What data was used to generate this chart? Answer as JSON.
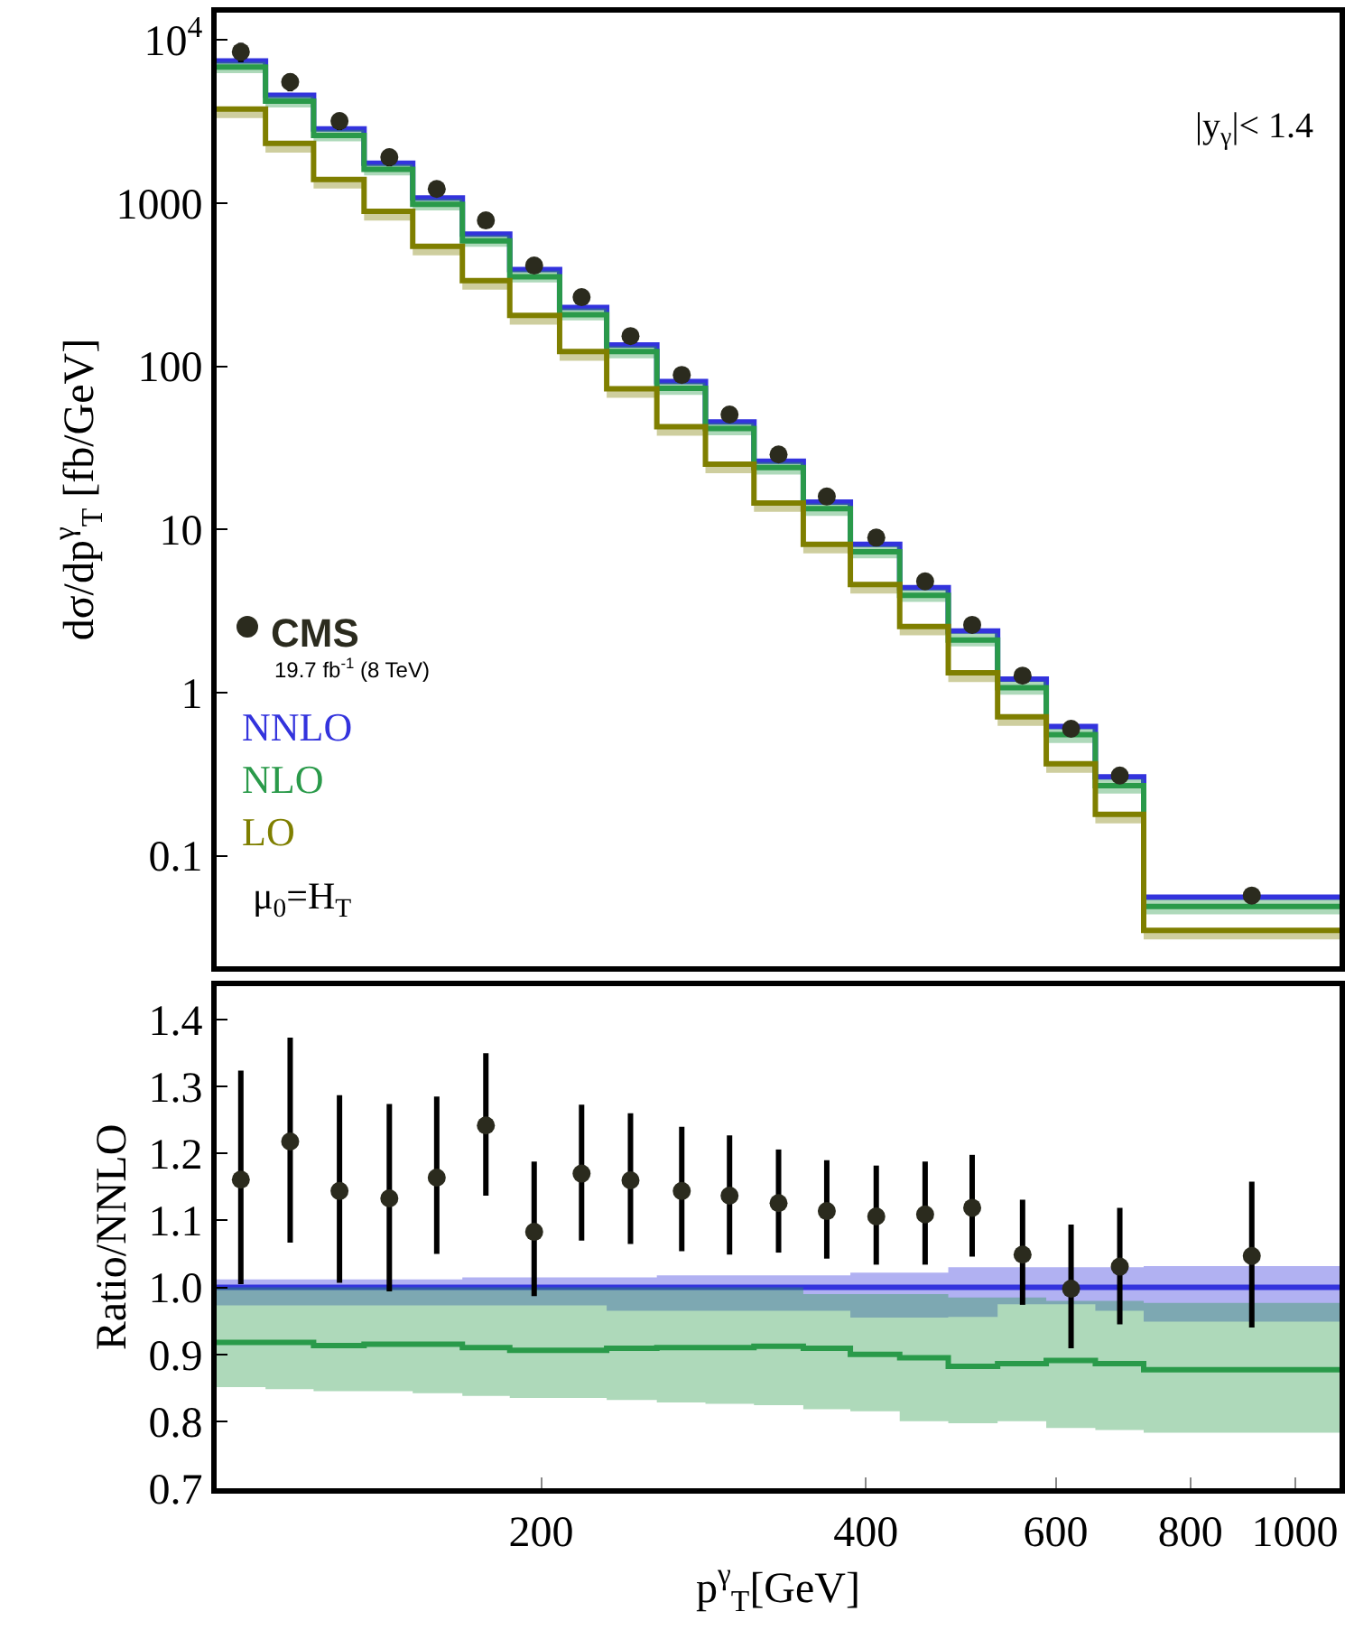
{
  "chart_data": [
    {
      "type": "step",
      "ylabel": "dσ/dp$^{γ}$$_{T}$ [fb/GeV]",
      "log": "xy",
      "xlim": [
        100,
        1100
      ],
      "ylim": [
        0.021,
        14700
      ],
      "yticks": [
        {
          "value": 10000,
          "label": "10$^{4}$"
        },
        1000,
        100,
        10,
        1,
        0.1
      ],
      "tick_labels": "y",
      "legend": "bottom left",
      "line_style": "solid",
      "annotations": [
        "|y$_{γ}$|< 1.4",
        "19.7 fb$^{-1}$ (8 TeV)",
        "μ$_{0}$=H$_{T}$"
      ],
      "series": [
        {
          "name": "CMS",
          "type": "scatter",
          "marker": "circle",
          "color": "#2b2b1e",
          "x": [
            105.3,
            117,
            130,
            144.6,
            160,
            177.7,
            197,
            218,
            242,
            270,
            299,
            332,
            368,
            409,
            454,
            502,
            559,
            620,
            688,
            912
          ],
          "values": [
            8450,
            5525,
            3180,
            1910,
            1220,
            783,
            414,
            265,
            153,
            88.5,
            50.6,
            28.8,
            15.9,
            8.9,
            4.8,
            2.6,
            1.27,
            0.6,
            0.31,
            0.057
          ],
          "errors": [
            [
              7300,
              9600
            ],
            [
              4840,
              6230
            ],
            [
              2800,
              3580
            ],
            [
              1680,
              2150
            ],
            [
              1100,
              1350
            ],
            [
              717,
              851
            ],
            [
              377,
              454
            ],
            [
              242,
              288
            ],
            [
              140,
              166
            ],
            [
              81.5,
              95.9
            ],
            [
              46.7,
              54.6
            ],
            [
              26.9,
              30.8
            ],
            [
              14.9,
              17.0
            ],
            [
              8.3,
              9.5
            ],
            [
              4.5,
              5.1
            ],
            [
              2.43,
              2.78
            ],
            [
              1.18,
              1.37
            ],
            [
              0.547,
              0.658
            ],
            [
              0.284,
              0.336
            ],
            [
              0.051,
              0.063
            ]
          ]
        },
        {
          "name": "NNLO",
          "color": "#3333dd",
          "x": [
            100,
            111,
            123,
            137,
            152,
            169,
            187,
            208,
            230,
            256,
            284,
            315,
            350,
            387,
            430,
            477,
            530,
            588,
            653,
            724,
            1100
          ],
          "values": [
            7440,
            4585,
            2850,
            1757,
            1074,
            645,
            391,
            229,
            135,
            80.5,
            45.6,
            26.2,
            14.7,
            8.1,
            4.4,
            2.38,
            1.21,
            0.62,
            0.304,
            0.0557,
            0.0557
          ]
        },
        {
          "name": "NLO",
          "color": "#2a9a4a",
          "x": [
            100,
            111,
            123,
            137,
            152,
            169,
            187,
            208,
            230,
            256,
            284,
            315,
            350,
            387,
            430,
            477,
            530,
            588,
            653,
            724,
            1100
          ],
          "values": [
            6830,
            4210,
            2600,
            1610,
            983,
            587,
            354,
            207,
            123,
            73.3,
            41.5,
            23.9,
            13.4,
            7.3,
            3.94,
            2.1,
            1.07,
            0.552,
            0.269,
            0.0489,
            0.0489
          ],
          "lower": [
            6250,
            3850,
            2390,
            1480,
            902,
            540,
            326,
            191,
            112,
            66.8,
            37.8,
            21.7,
            12.1,
            6.65,
            3.6,
            1.92,
            0.97,
            0.49,
            0.24,
            0.0437,
            0.0437
          ],
          "upper": [
            7330,
            4520,
            2810,
            1730,
            1060,
            635,
            385,
            226,
            133,
            79.3,
            44.9,
            25.8,
            14.4,
            7.9,
            4.28,
            2.31,
            1.17,
            0.6,
            0.295,
            0.054,
            0.054
          ]
        },
        {
          "name": "LO",
          "color": "#7f7f00",
          "x": [
            100,
            111,
            123,
            137,
            152,
            169,
            187,
            208,
            230,
            256,
            284,
            315,
            350,
            387,
            430,
            477,
            530,
            588,
            653,
            724,
            1100
          ],
          "values": [
            3770,
            2323,
            1396,
            889,
            544,
            335,
            205,
            123,
            72.8,
            42.6,
            25.1,
            14.5,
            8.1,
            4.6,
            2.54,
            1.32,
            0.71,
            0.366,
            0.179,
            0.0349,
            0.0349
          ],
          "lower": [
            3320,
            2040,
            1230,
            782,
            479,
            295,
            180,
            108,
            64.1,
            37.5,
            22.1,
            12.8,
            7.13,
            4.05,
            2.24,
            1.16,
            0.625,
            0.322,
            0.158,
            0.0307,
            0.0307
          ],
          "upper": [
            3880,
            2390,
            1440,
            916,
            560,
            345,
            211,
            127,
            75,
            43.9,
            25.9,
            14.9,
            8.34,
            4.74,
            2.62,
            1.36,
            0.731,
            0.377,
            0.184,
            0.036,
            0.036
          ]
        }
      ]
    },
    {
      "type": "step",
      "xlabel": "p$^{γ}$$_{T}$[GeV]",
      "ylabel": "Ratio/NNLO",
      "log": "x",
      "xlim": [
        100,
        1100
      ],
      "ylim": [
        0.7,
        1.45
      ],
      "xticks": [
        200,
        400,
        600,
        800,
        1000
      ],
      "yticks": [
        0.7,
        0.8,
        0.9,
        {
          "value": 1,
          "label": "1.0"
        },
        1.1,
        1.2,
        1.3,
        1.4
      ],
      "line_style": "solid",
      "series": [
        {
          "color": "#3333dd",
          "x": [
            100,
            111,
            123,
            137,
            152,
            169,
            187,
            208,
            230,
            256,
            284,
            315,
            350,
            387,
            430,
            477,
            530,
            588,
            653,
            724,
            1100
          ],
          "values": [
            1,
            1,
            1,
            1,
            1,
            1,
            1,
            1,
            1,
            1,
            1,
            1,
            1,
            1,
            1,
            1,
            1,
            1,
            1,
            1,
            1
          ],
          "lower": [
            0.973,
            0.973,
            0.973,
            0.973,
            0.973,
            0.973,
            0.973,
            0.973,
            0.965,
            0.965,
            0.965,
            0.965,
            0.965,
            0.955,
            0.955,
            0.956,
            0.975,
            0.975,
            0.965,
            0.949,
            0.949
          ],
          "upper": [
            1.012,
            1.012,
            1.012,
            1.012,
            1.012,
            1.015,
            1.015,
            1.015,
            1.015,
            1.018,
            1.018,
            1.018,
            1.018,
            1.022,
            1.022,
            1.03,
            1.03,
            1.03,
            1.03,
            1.032,
            1.032
          ]
        },
        {
          "color": "#2a9a4a",
          "x": [
            100,
            111,
            123,
            137,
            152,
            169,
            187,
            208,
            230,
            256,
            284,
            315,
            350,
            387,
            430,
            477,
            530,
            588,
            653,
            724,
            1100
          ],
          "values": [
            0.918,
            0.918,
            0.913,
            0.915,
            0.915,
            0.91,
            0.906,
            0.906,
            0.909,
            0.91,
            0.91,
            0.912,
            0.909,
            0.9,
            0.895,
            0.882,
            0.886,
            0.891,
            0.886,
            0.877,
            0.877
          ],
          "lower": [
            0.851,
            0.848,
            0.845,
            0.845,
            0.842,
            0.838,
            0.835,
            0.835,
            0.832,
            0.828,
            0.826,
            0.824,
            0.818,
            0.815,
            0.8,
            0.797,
            0.8,
            0.79,
            0.787,
            0.783,
            0.783
          ],
          "upper": [
            1.0,
            1.0,
            1.0,
            1.0,
            1.0,
            1.0,
            1.0,
            1.0,
            1.0,
            1.0,
            1.0,
            1.0,
            0.99,
            0.99,
            0.99,
            0.985,
            0.985,
            0.98,
            0.98,
            0.977,
            0.977
          ]
        },
        {
          "type": "scatter",
          "marker": "circle",
          "color": "#2b2b1e",
          "x": [
            105.3,
            117,
            130,
            144.6,
            160,
            177.7,
            197,
            218,
            242,
            270,
            299,
            332,
            368,
            409,
            454,
            502,
            559,
            620,
            688,
            912
          ],
          "values": [
            1.161,
            1.218,
            1.144,
            1.133,
            1.164,
            1.242,
            1.083,
            1.17,
            1.16,
            1.144,
            1.137,
            1.126,
            1.114,
            1.106,
            1.109,
            1.119,
            1.049,
            0.998,
            1.031,
            1.047
          ],
          "errors": [
            [
              1.005,
              1.324
            ],
            [
              1.067,
              1.373
            ],
            [
              1.007,
              1.287
            ],
            [
              0.994,
              1.274
            ],
            [
              1.05,
              1.285
            ],
            [
              1.137,
              1.35
            ],
            [
              0.987,
              1.188
            ],
            [
              1.07,
              1.273
            ],
            [
              1.065,
              1.26
            ],
            [
              1.054,
              1.24
            ],
            [
              1.049,
              1.227
            ],
            [
              1.052,
              1.206
            ],
            [
              1.043,
              1.19
            ],
            [
              1.034,
              1.182
            ],
            [
              1.034,
              1.188
            ],
            [
              1.046,
              1.198
            ],
            [
              0.974,
              1.131
            ],
            [
              0.909,
              1.094
            ],
            [
              0.945,
              1.119
            ],
            [
              0.94,
              1.158
            ]
          ]
        }
      ]
    }
  ]
}
